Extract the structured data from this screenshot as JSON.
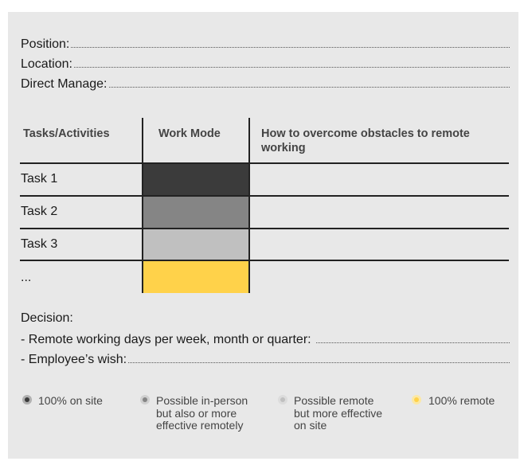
{
  "fields": {
    "position": "Position:",
    "location": "Location:",
    "direct_manager": "Direct Manage:"
  },
  "table": {
    "headers": {
      "tasks": "Tasks/Activities",
      "work_mode": "Work Mode",
      "obstacles": "How to overcome obstacles to remote working"
    },
    "rows": [
      {
        "task": "Task 1",
        "color": "#3b3b3b"
      },
      {
        "task": "Task 2",
        "color": "#858585"
      },
      {
        "task": "Task 3",
        "color": "#c0c0c0"
      },
      {
        "task": "...",
        "color": "#ffd24a"
      }
    ]
  },
  "decision": {
    "title": "Decision:",
    "remote_days": "- Remote working days per week, month or quarter:",
    "employee_wish": "- Employee’s wish:"
  },
  "legend": [
    {
      "label": "100% on site",
      "color": "#3b3b3b",
      "ring": "#b0b0b0"
    },
    {
      "label": "Possible in-person but also or more effective remotely",
      "color": "#858585",
      "ring": "#d0d0d0"
    },
    {
      "label": "Possible remote but more effective on site",
      "color": "#c0c0c0",
      "ring": "#dcdcdc"
    },
    {
      "label": "100% remote",
      "color": "#ffd24a",
      "ring": "#fbe8a6"
    }
  ]
}
